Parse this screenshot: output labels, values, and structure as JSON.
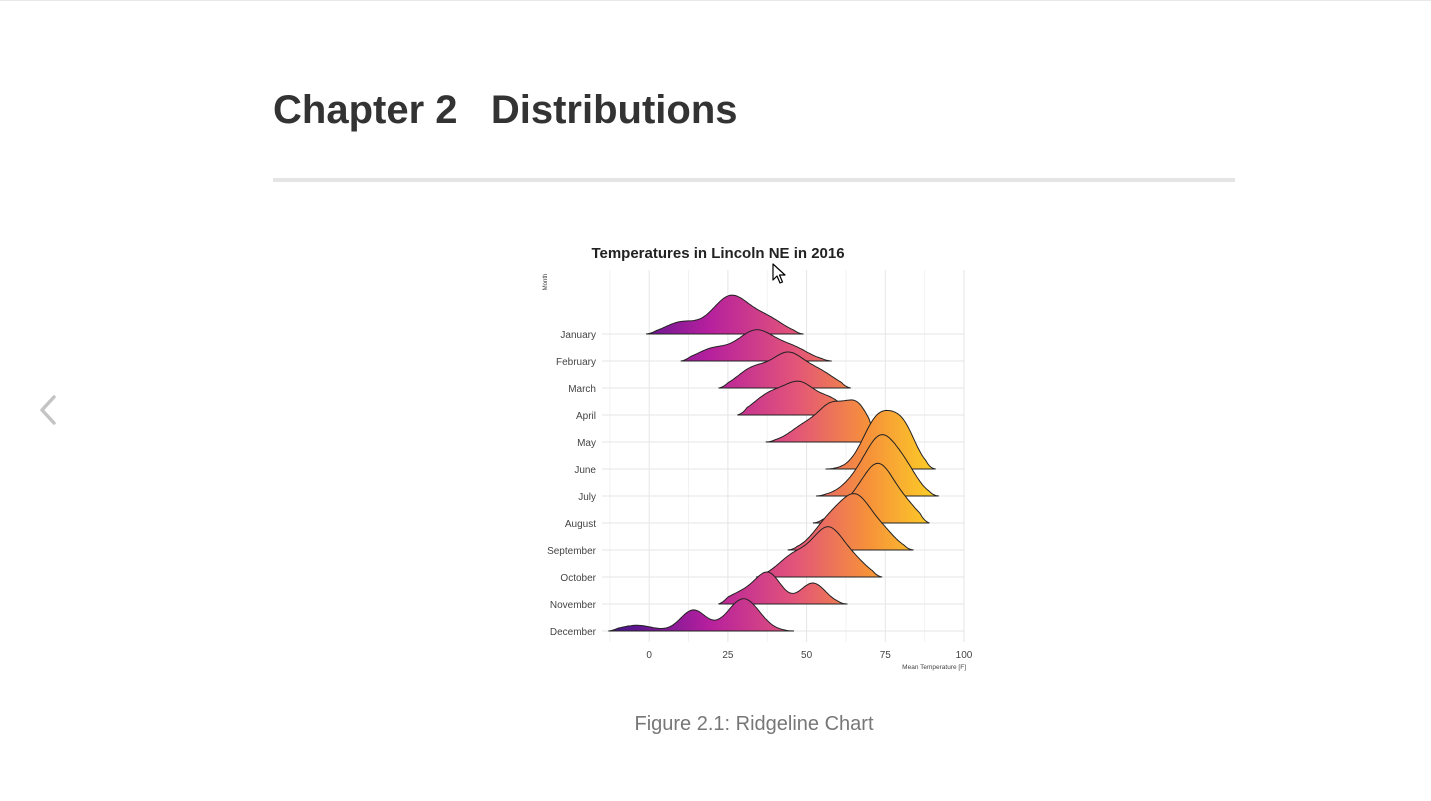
{
  "page": {
    "chapter_title": "Chapter 2   Distributions",
    "caption": "Figure 2.1: Ridgeline Chart",
    "nav_prev_icon": "chevron-left-icon",
    "cursor_icon": "mouse-pointer-icon"
  },
  "chart_data": {
    "type": "ridgeline",
    "title": "Temperatures in Lincoln NE in 2016",
    "xlabel": "Mean Temperature [F]",
    "ylabel": "Month",
    "xlim": [
      -15,
      100
    ],
    "xticks": [
      0,
      25,
      50,
      75,
      100
    ],
    "categories": [
      "January",
      "February",
      "March",
      "April",
      "May",
      "June",
      "July",
      "August",
      "September",
      "October",
      "November",
      "December"
    ],
    "color_scale": {
      "low": "#4a148c",
      "mid_low": "#b51f9e",
      "mid": "#e2547a",
      "mid_high": "#f6913a",
      "high": "#fcd225"
    },
    "grid": true,
    "series": [
      {
        "name": "January",
        "range": [
          -1,
          49
        ],
        "peaks": [
          {
            "x": 10,
            "h": 0.3,
            "w": 5
          },
          {
            "x": 26,
            "h": 1.0,
            "w": 6
          },
          {
            "x": 38,
            "h": 0.35,
            "w": 5
          }
        ]
      },
      {
        "name": "February",
        "range": [
          10,
          58
        ],
        "peaks": [
          {
            "x": 20,
            "h": 0.3,
            "w": 5
          },
          {
            "x": 34,
            "h": 0.8,
            "w": 6
          },
          {
            "x": 46,
            "h": 0.3,
            "w": 5
          }
        ]
      },
      {
        "name": "March",
        "range": [
          22,
          64
        ],
        "peaks": [
          {
            "x": 33,
            "h": 0.5,
            "w": 5
          },
          {
            "x": 44,
            "h": 0.85,
            "w": 5
          },
          {
            "x": 54,
            "h": 0.4,
            "w": 5
          }
        ]
      },
      {
        "name": "April",
        "range": [
          28,
          68
        ],
        "peaks": [
          {
            "x": 38,
            "h": 0.5,
            "w": 5
          },
          {
            "x": 48,
            "h": 0.8,
            "w": 5
          },
          {
            "x": 58,
            "h": 0.35,
            "w": 4
          }
        ]
      },
      {
        "name": "May",
        "range": [
          37,
          73
        ],
        "peaks": [
          {
            "x": 50,
            "h": 0.45,
            "w": 5
          },
          {
            "x": 58,
            "h": 0.8,
            "w": 4
          },
          {
            "x": 66,
            "h": 0.95,
            "w": 4
          }
        ]
      },
      {
        "name": "June",
        "range": [
          56,
          91
        ],
        "peaks": [
          {
            "x": 73,
            "h": 1.35,
            "w": 5
          },
          {
            "x": 81,
            "h": 0.9,
            "w": 4
          }
        ]
      },
      {
        "name": "July",
        "range": [
          53,
          92
        ],
        "peaks": [
          {
            "x": 66,
            "h": 0.35,
            "w": 5
          },
          {
            "x": 74,
            "h": 1.45,
            "w": 5
          },
          {
            "x": 82,
            "h": 0.5,
            "w": 4
          }
        ]
      },
      {
        "name": "August",
        "range": [
          52,
          89
        ],
        "peaks": [
          {
            "x": 64,
            "h": 0.45,
            "w": 5
          },
          {
            "x": 73,
            "h": 1.45,
            "w": 5
          },
          {
            "x": 82,
            "h": 0.35,
            "w": 4
          }
        ]
      },
      {
        "name": "September",
        "range": [
          44,
          84
        ],
        "peaks": [
          {
            "x": 57,
            "h": 0.7,
            "w": 5
          },
          {
            "x": 66,
            "h": 1.3,
            "w": 5
          },
          {
            "x": 75,
            "h": 0.35,
            "w": 4
          }
        ]
      },
      {
        "name": "October",
        "range": [
          34,
          74
        ],
        "peaks": [
          {
            "x": 46,
            "h": 0.55,
            "w": 5
          },
          {
            "x": 57,
            "h": 1.25,
            "w": 5
          },
          {
            "x": 66,
            "h": 0.3,
            "w": 4
          }
        ]
      },
      {
        "name": "November",
        "range": [
          22,
          63
        ],
        "peaks": [
          {
            "x": 30,
            "h": 0.3,
            "w": 5
          },
          {
            "x": 38,
            "h": 0.75,
            "w": 4
          },
          {
            "x": 52,
            "h": 0.55,
            "w": 4
          }
        ]
      },
      {
        "name": "December",
        "range": [
          -13,
          46
        ],
        "peaks": [
          {
            "x": -4,
            "h": 0.15,
            "w": 5
          },
          {
            "x": 14,
            "h": 0.55,
            "w": 4
          },
          {
            "x": 30,
            "h": 0.85,
            "w": 5
          }
        ]
      }
    ]
  }
}
